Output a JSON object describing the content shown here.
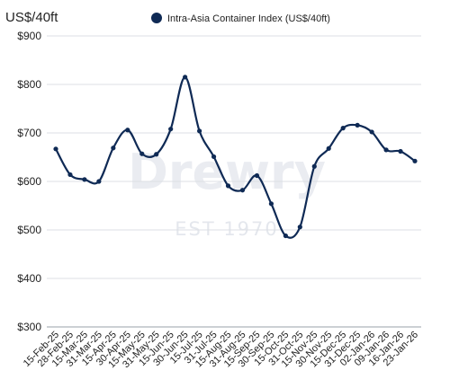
{
  "chart_data": {
    "type": "line",
    "ylabel": "US$/40ft",
    "legend": "top-center",
    "grid": true,
    "ylim": [
      300,
      900
    ],
    "yticks": [
      300,
      400,
      500,
      600,
      700,
      800,
      900
    ],
    "ytick_labels": [
      "$300",
      "$400",
      "$500",
      "$600",
      "$700",
      "$800",
      "$900"
    ],
    "categories": [
      "15-Feb-25",
      "28-Feb-25",
      "15-Mar-25",
      "31-Mar-25",
      "15-Apr-25",
      "30-Apr-25",
      "15-May-25",
      "31-May-25",
      "15-Jun-25",
      "30-Jun-25",
      "15-Jul-25",
      "31-Jul-25",
      "15-Aug-25",
      "31-Aug-25",
      "15-Sep-25",
      "30-Sep-25",
      "15-Oct-25",
      "31-Oct-25",
      "15-Nov-25",
      "30-Nov-25",
      "15-Dec-25",
      "31-Dec-25",
      "02-Jan-26",
      "09-Jan-26",
      "16-Jan-26",
      "23-Jan-26"
    ],
    "point_labels": [
      "15-Feb-25",
      "28-Feb-25",
      "15-Mar-25",
      "31-Mar-25",
      "15-Apr-25",
      "30-Apr-25",
      "15-May-25",
      "31-May-25",
      "15-Jun-25",
      "30-Jun-25",
      "15-Jul-25",
      "31-Jul-25",
      "15-Aug-25",
      "31-Aug-25",
      "15-Sep-25",
      "30-Sep-25",
      "15-Oct-25",
      "31-Oct-25",
      "15-Nov-25",
      "30-Nov-25",
      "15-Dec-25",
      "31-Dec-25",
      "02-Jan-26",
      "09-Jan-26",
      "16-Jan-26",
      "23-Jan-26"
    ],
    "series": [
      {
        "name": "Intra-Asia Container Index (US$/40ft)",
        "color": "#0f2a55",
        "values": [
          667,
          614,
          604,
          600,
          669,
          706,
          657,
          656,
          708,
          815,
          704,
          651,
          591,
          582,
          612,
          554,
          488,
          506,
          631,
          668,
          710,
          716,
          702,
          665,
          662,
          642
        ]
      }
    ]
  },
  "watermark": {
    "brand": "Drewry",
    "sub": "EST 1970"
  },
  "colors": {
    "line": "#0f2a55",
    "grid": "#dcdfe4",
    "text": "#222222"
  }
}
